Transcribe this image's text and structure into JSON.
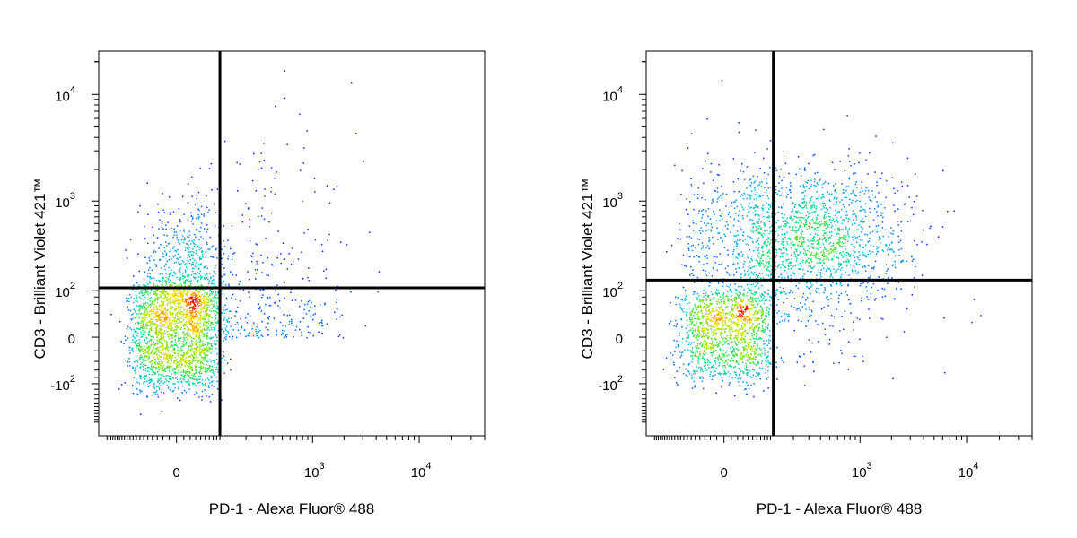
{
  "chart_data": [
    {
      "type": "scatter",
      "title": "",
      "xlabel": "PD-1 - Alexa Fluor® 488",
      "ylabel": "CD3 - Brilliant Violet 421™",
      "x_scale": "biexponential",
      "y_scale": "biexponential",
      "x_tick_labels": [
        {
          "value": 0,
          "base": "0",
          "exp": ""
        },
        {
          "value": 1000,
          "base": "10",
          "exp": "3"
        },
        {
          "value": 10000,
          "base": "10",
          "exp": "4"
        }
      ],
      "y_tick_labels": [
        {
          "value": 10000,
          "base": "10",
          "exp": "4"
        },
        {
          "value": 1000,
          "base": "10",
          "exp": "3"
        },
        {
          "value": 100,
          "base": "10",
          "exp": "2"
        },
        {
          "value": 0,
          "base": "0",
          "exp": ""
        },
        {
          "value": -100,
          "base": "-10",
          "exp": "2"
        }
      ],
      "quadrant_gate": {
        "x": 90,
        "y": 110
      },
      "populations": [
        {
          "x_center": 0,
          "y_center": 10,
          "x_spread": 45,
          "y_spread": 60,
          "count": 2200,
          "description": "PD-1 negative, CD3 low/negative (dense core)"
        },
        {
          "x_center": 10,
          "y_center": 220,
          "x_spread": 40,
          "y_spread": 0.35,
          "count": 500,
          "description": "PD-1 negative, CD3 positive"
        },
        {
          "x_center": 350,
          "y_center": 70,
          "x_spread": 0.45,
          "y_spread": 0.8,
          "count": 350,
          "description": "PD-1 positive scattered"
        }
      ],
      "grid": false,
      "legend": "none"
    },
    {
      "type": "scatter",
      "title": "",
      "xlabel": "PD-1 - Alexa Fluor® 488",
      "ylabel": "CD3 - Brilliant Violet 421™",
      "x_scale": "biexponential",
      "y_scale": "biexponential",
      "x_tick_labels": [
        {
          "value": 0,
          "base": "0",
          "exp": ""
        },
        {
          "value": 1000,
          "base": "10",
          "exp": "3"
        },
        {
          "value": 10000,
          "base": "10",
          "exp": "4"
        }
      ],
      "y_tick_labels": [
        {
          "value": 10000,
          "base": "10",
          "exp": "4"
        },
        {
          "value": 1000,
          "base": "10",
          "exp": "3"
        },
        {
          "value": 100,
          "base": "10",
          "exp": "2"
        },
        {
          "value": 0,
          "base": "0",
          "exp": ""
        },
        {
          "value": -100,
          "base": "-10",
          "exp": "2"
        }
      ],
      "quadrant_gate": {
        "x": 110,
        "y": 140
      },
      "populations": [
        {
          "x_center": 5,
          "y_center": 10,
          "x_spread": 45,
          "y_spread": 45,
          "count": 1400,
          "description": "CD3 negative, PD-1 negative (dense core)"
        },
        {
          "x_center": 350,
          "y_center": 450,
          "x_spread": 0.45,
          "y_spread": 0.35,
          "count": 1400,
          "description": "CD3 positive, PD-1 positive"
        },
        {
          "x_center": 20,
          "y_center": 420,
          "x_spread": 55,
          "y_spread": 0.4,
          "count": 450,
          "description": "CD3 positive, PD-1 negative"
        },
        {
          "x_center": 300,
          "y_center": 40,
          "x_spread": 0.5,
          "y_spread": 50,
          "count": 150,
          "description": "PD-1 positive, CD3 low scattered"
        }
      ],
      "grid": false,
      "legend": "none"
    }
  ]
}
